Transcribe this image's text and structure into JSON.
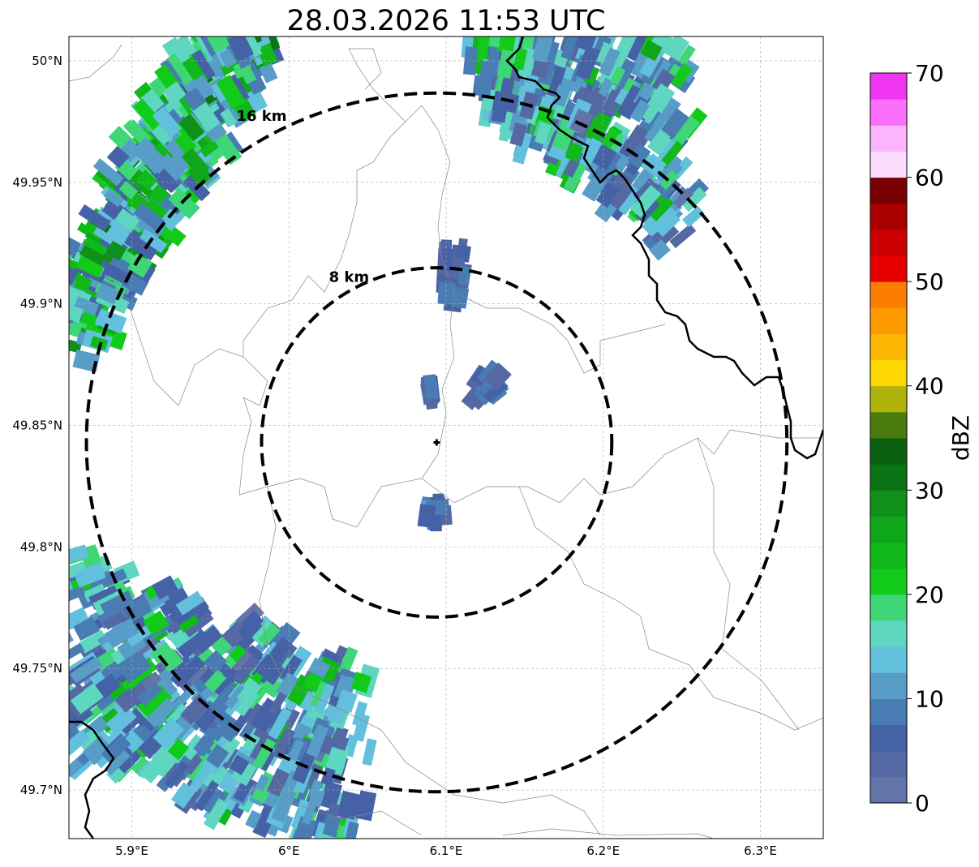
{
  "title": "28.03.2026 11:53 UTC",
  "map": {
    "lon_range": [
      5.86,
      6.34
    ],
    "lat_range": [
      49.68,
      50.01
    ],
    "lon_ticks": [
      {
        "value": 5.9,
        "label": "5.9°E"
      },
      {
        "value": 6.0,
        "label": "6°E"
      },
      {
        "value": 6.1,
        "label": "6.1°E"
      },
      {
        "value": 6.2,
        "label": "6.2°E"
      },
      {
        "value": 6.3,
        "label": "6.3°E"
      }
    ],
    "lat_ticks": [
      {
        "value": 50.0,
        "label": "50°N"
      },
      {
        "value": 49.95,
        "label": "49.95°N"
      },
      {
        "value": 49.9,
        "label": "49.9°N"
      },
      {
        "value": 49.85,
        "label": "49.85°N"
      },
      {
        "value": 49.8,
        "label": "49.8°N"
      },
      {
        "value": 49.75,
        "label": "49.75°N"
      },
      {
        "value": 49.7,
        "label": "49.7°N"
      }
    ],
    "gridlines": true,
    "radar_site": {
      "lon": 6.094,
      "lat": 49.843
    },
    "range_rings": [
      {
        "radius_km": 8,
        "label": "8 km"
      },
      {
        "radius_km": 16,
        "label": "16 km"
      }
    ]
  },
  "colorbar": {
    "label": "dBZ",
    "min": 0,
    "max": 70,
    "tick_values": [
      0,
      10,
      20,
      30,
      40,
      50,
      60,
      70
    ],
    "tick_labels": [
      "0",
      "10",
      "20",
      "30",
      "40",
      "50",
      "60",
      "70"
    ],
    "colors": [
      "#6274a8",
      "#5468a4",
      "#4662a6",
      "#4a7cb4",
      "#589dc8",
      "#62c0dc",
      "#5ed6c0",
      "#3ed676",
      "#12ca1a",
      "#10b81a",
      "#0fa61a",
      "#0f901a",
      "#0b7414",
      "#0a600f",
      "#4a7b0e",
      "#b0b20c",
      "#fcd800",
      "#fcb600",
      "#fc9a00",
      "#fc7e00",
      "#e60000",
      "#cc0000",
      "#aa0000",
      "#780000",
      "#fcdcfc",
      "#fcb4fc",
      "#fc6efc",
      "#f034f0"
    ]
  },
  "chart_data": {
    "type": "heatmap",
    "title": "28.03.2026 11:53 UTC",
    "colorbar_label": "dBZ",
    "colorbar_range": [
      0,
      70
    ],
    "echo_regions": [
      {
        "area": "northwest",
        "lon": [
          5.86,
          5.98
        ],
        "lat": [
          49.88,
          50.01
        ],
        "dbz_range": [
          5,
          33
        ]
      },
      {
        "area": "northeast",
        "lon": [
          6.12,
          6.25
        ],
        "lat": [
          49.92,
          50.01
        ],
        "dbz_range": [
          2,
          28
        ]
      },
      {
        "area": "southwest",
        "lon": [
          5.86,
          6.04
        ],
        "lat": [
          49.68,
          49.8
        ],
        "dbz_range": [
          2,
          25
        ]
      },
      {
        "area": "center",
        "lon": [
          6.08,
          6.14
        ],
        "lat": [
          49.81,
          49.92
        ],
        "dbz_range": [
          3,
          12
        ]
      }
    ]
  }
}
